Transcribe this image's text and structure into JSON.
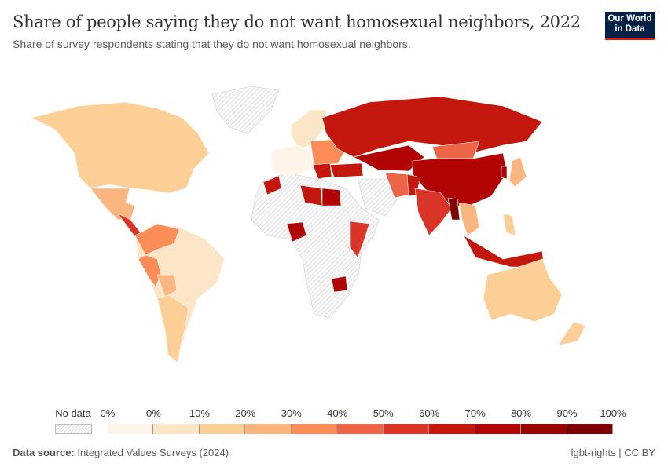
{
  "header": {
    "title": "Share of people saying they do not want homosexual neighbors, 2022",
    "subtitle": "Share of survey respondents stating that they do not want homosexual neighbors.",
    "logo": "Our World in Data"
  },
  "legend": {
    "no_data_label": "No data",
    "labels": [
      "0%",
      "0%",
      "10%",
      "20%",
      "30%",
      "40%",
      "50%",
      "60%",
      "70%",
      "80%",
      "90%",
      "100%"
    ],
    "colors": [
      "#fef4e8",
      "#fde5c8",
      "#fccf96",
      "#fbb57e",
      "#fc8d59",
      "#ee6447",
      "#db3529",
      "#c4180f",
      "#b10303",
      "#990000",
      "#7f0000"
    ]
  },
  "footer": {
    "source_label": "Data source:",
    "source": "Integrated Values Surveys (2024)",
    "license": "lgbt-rights | CC BY"
  }
}
